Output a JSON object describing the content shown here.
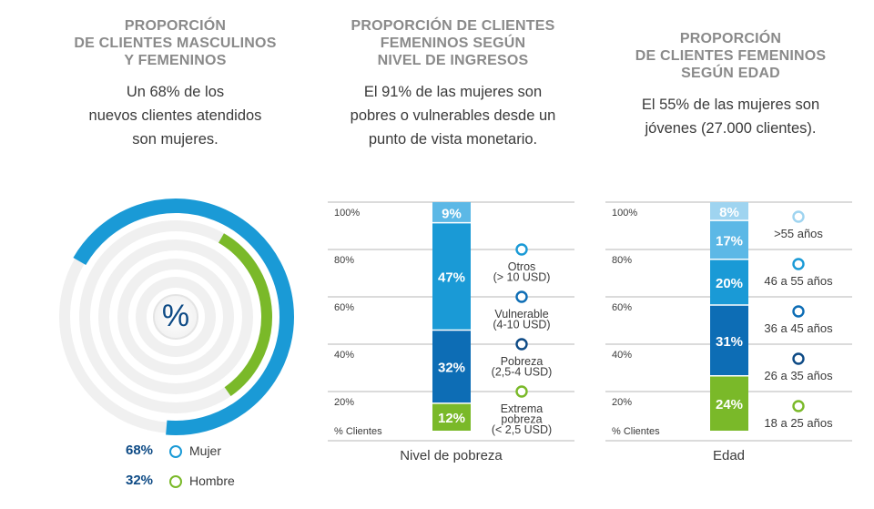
{
  "colors": {
    "mujer": "#1a9ad6",
    "hombre": "#7ab929",
    "navy": "#0d4a85",
    "dark_blue": "#0d6db5",
    "mid_blue": "#1a9ad6",
    "light_blue": "#5cb8e6",
    "pale_blue": "#9fd4f0",
    "green": "#7ab929",
    "grid": "#cfcfcf",
    "title_gray": "#8a8a8a"
  },
  "panel1": {
    "title_l1": "PROPORCIÓN",
    "title_l2": "DE CLIENTES MASCULINOS",
    "title_l3": "Y FEMENINOS",
    "sub_l1": "Un 68% de los",
    "sub_l2": "nuevos clientes atendidos",
    "sub_l3": "son mujeres.",
    "center_symbol": "%",
    "legend": [
      {
        "pct": "68%",
        "label": "Mujer"
      },
      {
        "pct": "32%",
        "label": "Hombre"
      }
    ]
  },
  "panel2": {
    "title_l1": "PROPORCIÓN DE CLIENTES",
    "title_l2": "FEMENINOS SEGÚN",
    "title_l3": "NIVEL DE INGRESOS",
    "sub_l1": "El 91% de las mujeres son",
    "sub_l2": "pobres o vulnerables desde un",
    "sub_l3": "punto de vista monetario."
  },
  "panel3": {
    "title_l1": "PROPORCIÓN",
    "title_l2": "DE CLIENTES FEMENINOS",
    "title_l3": "SEGÚN EDAD",
    "sub_l1": "El 55% de las mujeres son",
    "sub_l2": "jóvenes (27.000 clientes)."
  },
  "chart_data": [
    {
      "type": "pie",
      "categories": [
        "Mujer",
        "Hombre"
      ],
      "values": [
        68,
        32
      ]
    },
    {
      "type": "bar",
      "stacked": true,
      "xlabel": "Nivel de pobreza",
      "ylabel": "% Clientes",
      "y_ticks": [
        "100%",
        "80%",
        "60%",
        "40%",
        "20%"
      ],
      "ylim": [
        0,
        100
      ],
      "segments": [
        {
          "pct": 12,
          "label": "12%",
          "lines": [
            "Extrema",
            "pobreza",
            "(< 2,5  USD)"
          ],
          "color": "#7ab929",
          "marker": "#7ab929"
        },
        {
          "pct": 32,
          "label": "32%",
          "lines": [
            "Pobreza",
            "(2,5-4 USD)"
          ],
          "color": "#0d6db5",
          "marker": "#0d4a85"
        },
        {
          "pct": 47,
          "label": "47%",
          "lines": [
            "Vulnerable",
            "(4-10 USD)"
          ],
          "color": "#1a9ad6",
          "marker": "#0d6db5"
        },
        {
          "pct": 9,
          "label": "9%",
          "lines": [
            "Otros",
            "(> 10 USD)"
          ],
          "color": "#5cb8e6",
          "marker": "#1a9ad6"
        }
      ]
    },
    {
      "type": "bar",
      "stacked": true,
      "xlabel": "Edad",
      "ylabel": "% Clientes",
      "y_ticks": [
        "100%",
        "80%",
        "60%",
        "40%",
        "20%"
      ],
      "ylim": [
        0,
        100
      ],
      "segments": [
        {
          "pct": 24,
          "label": "24%",
          "lines": [
            "18 a 25 años"
          ],
          "color": "#7ab929",
          "marker": "#7ab929"
        },
        {
          "pct": 31,
          "label": "31%",
          "lines": [
            "26 a 35 años"
          ],
          "color": "#0d6db5",
          "marker": "#0d4a85"
        },
        {
          "pct": 20,
          "label": "20%",
          "lines": [
            "36 a 45 años"
          ],
          "color": "#1a9ad6",
          "marker": "#0d6db5"
        },
        {
          "pct": 17,
          "label": "17%",
          "lines": [
            "46 a 55 años"
          ],
          "color": "#5cb8e6",
          "marker": "#1a9ad6"
        },
        {
          "pct": 8,
          "label": "8%",
          "lines": [
            ">55 años"
          ],
          "color": "#9fd4f0",
          "marker": "#9fd4f0"
        }
      ]
    }
  ]
}
